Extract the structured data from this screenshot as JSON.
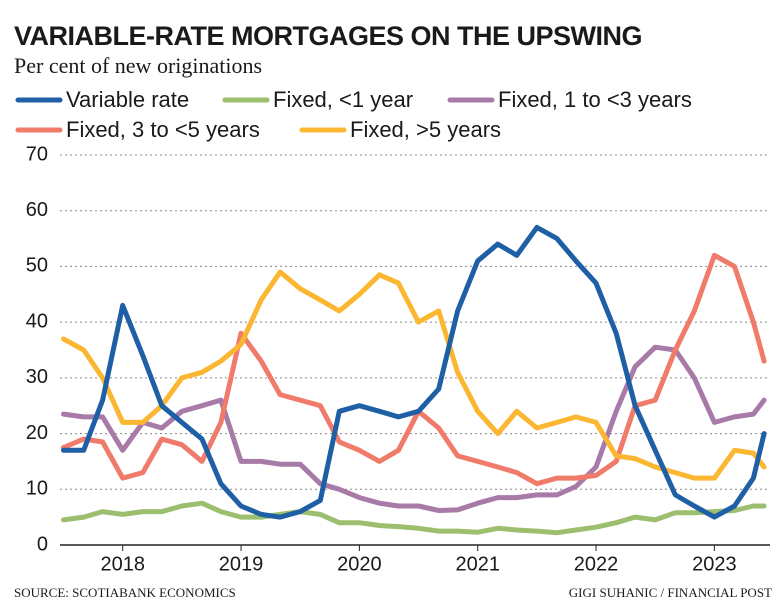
{
  "chart_data": {
    "type": "line",
    "title": "VARIABLE-RATE MORTGAGES ON THE UPSWING",
    "subtitle": "Per cent of new originations",
    "source": "SOURCE: SCOTIABANK ECONOMICS",
    "credit": "GIGI SUHANIC / FINANCIAL POST",
    "x": [
      2018,
      2018.17,
      2018.33,
      2018.5,
      2018.67,
      2018.83,
      2019,
      2019.17,
      2019.33,
      2019.5,
      2019.67,
      2019.83,
      2020,
      2020.17,
      2020.33,
      2020.5,
      2020.67,
      2020.83,
      2021,
      2021.17,
      2021.33,
      2021.5,
      2021.67,
      2021.83,
      2022,
      2022.17,
      2022.33,
      2022.5,
      2022.67,
      2022.83,
      2023,
      2023.17,
      2023.33,
      2023.5,
      2023.67,
      2023.83,
      2023.92
    ],
    "xlim": [
      2017.97,
      2023.97
    ],
    "xticks": [
      {
        "value": 2018.5,
        "label": "2018"
      },
      {
        "value": 2019.5,
        "label": "2019"
      },
      {
        "value": 2020.5,
        "label": "2020"
      },
      {
        "value": 2021.5,
        "label": "2021"
      },
      {
        "value": 2022.5,
        "label": "2022"
      },
      {
        "value": 2023.5,
        "label": "2023"
      }
    ],
    "ylim": [
      0,
      70
    ],
    "yticks": [
      0,
      10,
      20,
      30,
      40,
      50,
      60,
      70
    ],
    "grid": true,
    "series": [
      {
        "name": "Variable rate",
        "color": "#1f5fa6",
        "values": [
          17,
          17,
          26,
          43,
          34,
          25,
          22,
          19,
          11,
          7,
          5.5,
          5,
          6,
          8,
          24,
          25,
          24,
          23,
          24,
          28,
          42,
          51,
          54,
          52,
          57,
          55,
          51,
          47,
          38,
          25,
          17,
          9,
          7,
          5,
          7,
          12,
          20
        ]
      },
      {
        "name": "Fixed, <1 year",
        "color": "#9bbf6e",
        "values": [
          4.5,
          5,
          6,
          5.5,
          6,
          6,
          7,
          7.5,
          6,
          5,
          5,
          5.5,
          6,
          5.5,
          4,
          4,
          3.5,
          3.3,
          3,
          2.5,
          2.5,
          2.3,
          3,
          2.7,
          2.5,
          2.2,
          2.7,
          3.2,
          4,
          5,
          4.5,
          5.8,
          5.8,
          6,
          6.2,
          7,
          7
        ]
      },
      {
        "name": "Fixed, 1 to <3 years",
        "color": "#a87aa8",
        "values": [
          23.5,
          23,
          23,
          17,
          22,
          21,
          24,
          25,
          26,
          15,
          15,
          14.5,
          14.5,
          11,
          10,
          8.5,
          7.5,
          7,
          7,
          6.2,
          6.3,
          7.5,
          8.5,
          8.5,
          9,
          9,
          10.5,
          14,
          24,
          32,
          35.5,
          35,
          30,
          22,
          23,
          23.5,
          26
        ]
      },
      {
        "name": "Fixed, 3 to <5 years",
        "color": "#f07b6b",
        "values": [
          17.5,
          19,
          18.5,
          12,
          13,
          19,
          18,
          15,
          22,
          38,
          33,
          27,
          26,
          25,
          18.5,
          17,
          15,
          17,
          24,
          21,
          16,
          15,
          14,
          13,
          11,
          12,
          12,
          12.5,
          15,
          25,
          26,
          35,
          42,
          52,
          50,
          40,
          33
        ]
      },
      {
        "name": "Fixed, >5 years",
        "color": "#fbb731",
        "values": [
          37,
          35,
          30,
          22,
          22,
          25,
          30,
          31,
          33,
          36,
          44,
          49,
          46,
          44,
          42,
          45,
          48.5,
          47,
          40,
          42,
          31,
          24,
          20,
          24,
          21,
          22,
          23,
          22,
          16,
          15.5,
          14,
          13,
          12,
          12,
          17,
          16.5,
          14
        ]
      }
    ]
  }
}
